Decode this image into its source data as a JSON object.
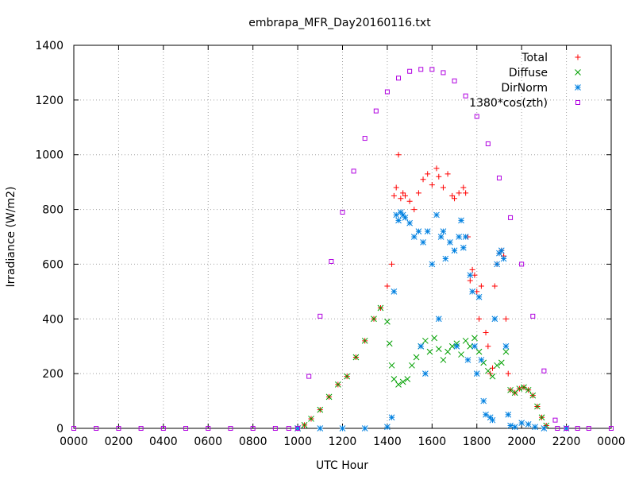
{
  "chart_data": {
    "type": "scatter",
    "title": "embrapa_MFR_Day20160116.txt",
    "xlabel": "UTC Hour",
    "ylabel": "Irradiance (W/m2)",
    "xlim": [
      0,
      24
    ],
    "ylim": [
      0,
      1400
    ],
    "xticks": [
      "0000",
      "0200",
      "0400",
      "0600",
      "0800",
      "1000",
      "1200",
      "1400",
      "1600",
      "1800",
      "2000",
      "2200",
      "0000"
    ],
    "yticks": [
      "0",
      "200",
      "400",
      "600",
      "800",
      "1000",
      "1200",
      "1400"
    ],
    "grid": true,
    "legend_position": "top-right",
    "series": [
      {
        "name": "Total",
        "marker": "plus",
        "color": "#ff0000",
        "points": [
          [
            10.0,
            0
          ],
          [
            10.3,
            12
          ],
          [
            10.6,
            35
          ],
          [
            11.0,
            68
          ],
          [
            11.4,
            115
          ],
          [
            11.8,
            160
          ],
          [
            12.2,
            190
          ],
          [
            12.6,
            260
          ],
          [
            13.0,
            320
          ],
          [
            13.4,
            400
          ],
          [
            13.7,
            440
          ],
          [
            14.0,
            520
          ],
          [
            14.2,
            600
          ],
          [
            14.3,
            850
          ],
          [
            14.4,
            880
          ],
          [
            14.5,
            1000
          ],
          [
            14.6,
            840
          ],
          [
            14.7,
            860
          ],
          [
            14.8,
            850
          ],
          [
            15.0,
            830
          ],
          [
            15.2,
            800
          ],
          [
            15.4,
            860
          ],
          [
            15.6,
            910
          ],
          [
            15.8,
            930
          ],
          [
            16.0,
            890
          ],
          [
            16.2,
            950
          ],
          [
            16.3,
            920
          ],
          [
            16.5,
            880
          ],
          [
            16.7,
            930
          ],
          [
            16.9,
            850
          ],
          [
            17.0,
            840
          ],
          [
            17.2,
            860
          ],
          [
            17.4,
            880
          ],
          [
            17.5,
            860
          ],
          [
            17.6,
            700
          ],
          [
            17.7,
            540
          ],
          [
            17.8,
            580
          ],
          [
            17.9,
            560
          ],
          [
            18.0,
            500
          ],
          [
            18.1,
            400
          ],
          [
            18.2,
            520
          ],
          [
            18.4,
            350
          ],
          [
            18.5,
            300
          ],
          [
            18.6,
            200
          ],
          [
            18.7,
            220
          ],
          [
            18.8,
            520
          ],
          [
            18.9,
            600
          ],
          [
            19.0,
            640
          ],
          [
            19.1,
            650
          ],
          [
            19.2,
            630
          ],
          [
            19.3,
            400
          ],
          [
            19.4,
            200
          ],
          [
            19.5,
            140
          ],
          [
            19.7,
            130
          ],
          [
            19.9,
            145
          ],
          [
            20.1,
            150
          ],
          [
            20.3,
            140
          ],
          [
            20.5,
            120
          ],
          [
            20.7,
            80
          ],
          [
            20.9,
            40
          ],
          [
            21.1,
            10
          ]
        ]
      },
      {
        "name": "Diffuse",
        "marker": "cross",
        "color": "#00a000",
        "points": [
          [
            10.0,
            0
          ],
          [
            10.3,
            12
          ],
          [
            10.6,
            35
          ],
          [
            11.0,
            68
          ],
          [
            11.4,
            115
          ],
          [
            11.8,
            160
          ],
          [
            12.2,
            190
          ],
          [
            12.6,
            260
          ],
          [
            13.0,
            320
          ],
          [
            13.4,
            400
          ],
          [
            13.7,
            440
          ],
          [
            14.0,
            390
          ],
          [
            14.1,
            310
          ],
          [
            14.2,
            230
          ],
          [
            14.3,
            180
          ],
          [
            14.5,
            160
          ],
          [
            14.7,
            170
          ],
          [
            14.9,
            180
          ],
          [
            15.1,
            230
          ],
          [
            15.3,
            260
          ],
          [
            15.5,
            300
          ],
          [
            15.7,
            320
          ],
          [
            15.9,
            280
          ],
          [
            16.1,
            330
          ],
          [
            16.3,
            290
          ],
          [
            16.5,
            250
          ],
          [
            16.7,
            280
          ],
          [
            16.9,
            300
          ],
          [
            17.1,
            310
          ],
          [
            17.3,
            270
          ],
          [
            17.5,
            320
          ],
          [
            17.7,
            300
          ],
          [
            17.9,
            330
          ],
          [
            18.1,
            280
          ],
          [
            18.3,
            240
          ],
          [
            18.5,
            210
          ],
          [
            18.7,
            190
          ],
          [
            18.9,
            230
          ],
          [
            19.1,
            240
          ],
          [
            19.3,
            280
          ],
          [
            19.5,
            140
          ],
          [
            19.7,
            130
          ],
          [
            19.9,
            145
          ],
          [
            20.1,
            150
          ],
          [
            20.3,
            140
          ],
          [
            20.5,
            120
          ],
          [
            20.7,
            80
          ],
          [
            20.9,
            40
          ],
          [
            21.1,
            10
          ]
        ]
      },
      {
        "name": "DirNorm",
        "marker": "star",
        "color": "#0080e0",
        "points": [
          [
            10.0,
            0
          ],
          [
            11.0,
            0
          ],
          [
            12.0,
            0
          ],
          [
            13.0,
            0
          ],
          [
            14.0,
            5
          ],
          [
            14.2,
            40
          ],
          [
            14.3,
            500
          ],
          [
            14.4,
            780
          ],
          [
            14.5,
            760
          ],
          [
            14.6,
            790
          ],
          [
            14.7,
            780
          ],
          [
            14.8,
            770
          ],
          [
            15.0,
            750
          ],
          [
            15.2,
            700
          ],
          [
            15.4,
            720
          ],
          [
            15.5,
            300
          ],
          [
            15.6,
            680
          ],
          [
            15.7,
            200
          ],
          [
            15.8,
            720
          ],
          [
            16.0,
            600
          ],
          [
            16.2,
            780
          ],
          [
            16.3,
            400
          ],
          [
            16.4,
            700
          ],
          [
            16.5,
            720
          ],
          [
            16.6,
            620
          ],
          [
            16.8,
            680
          ],
          [
            17.0,
            650
          ],
          [
            17.1,
            300
          ],
          [
            17.2,
            700
          ],
          [
            17.3,
            760
          ],
          [
            17.4,
            660
          ],
          [
            17.5,
            700
          ],
          [
            17.6,
            250
          ],
          [
            17.7,
            560
          ],
          [
            17.8,
            500
          ],
          [
            17.9,
            300
          ],
          [
            18.0,
            200
          ],
          [
            18.1,
            480
          ],
          [
            18.2,
            250
          ],
          [
            18.3,
            100
          ],
          [
            18.4,
            50
          ],
          [
            18.6,
            40
          ],
          [
            18.7,
            30
          ],
          [
            18.8,
            400
          ],
          [
            18.9,
            600
          ],
          [
            19.0,
            640
          ],
          [
            19.1,
            650
          ],
          [
            19.2,
            620
          ],
          [
            19.3,
            300
          ],
          [
            19.4,
            50
          ],
          [
            19.5,
            10
          ],
          [
            19.7,
            5
          ],
          [
            20.0,
            20
          ],
          [
            20.3,
            15
          ],
          [
            20.6,
            5
          ],
          [
            21.0,
            0
          ],
          [
            22.0,
            0
          ]
        ]
      },
      {
        "name": "1380*cos(zth)",
        "marker": "square",
        "color": "#b000e0",
        "points": [
          [
            0,
            0
          ],
          [
            1,
            0
          ],
          [
            2,
            0
          ],
          [
            3,
            0
          ],
          [
            4,
            0
          ],
          [
            5,
            0
          ],
          [
            6,
            0
          ],
          [
            7,
            0
          ],
          [
            8,
            0
          ],
          [
            9,
            0
          ],
          [
            9.6,
            0
          ],
          [
            10.0,
            0
          ],
          [
            10.5,
            190
          ],
          [
            11.0,
            410
          ],
          [
            11.5,
            610
          ],
          [
            12.0,
            790
          ],
          [
            12.5,
            940
          ],
          [
            13.0,
            1060
          ],
          [
            13.5,
            1160
          ],
          [
            14.0,
            1230
          ],
          [
            14.5,
            1280
          ],
          [
            15.0,
            1305
          ],
          [
            15.5,
            1312
          ],
          [
            16.0,
            1312
          ],
          [
            16.5,
            1300
          ],
          [
            17.0,
            1270
          ],
          [
            17.5,
            1215
          ],
          [
            18.0,
            1140
          ],
          [
            18.5,
            1040
          ],
          [
            19.0,
            915
          ],
          [
            19.5,
            770
          ],
          [
            20.0,
            600
          ],
          [
            20.5,
            410
          ],
          [
            21.0,
            210
          ],
          [
            21.5,
            30
          ],
          [
            21.6,
            0
          ],
          [
            22.0,
            0
          ],
          [
            22.5,
            0
          ],
          [
            23.0,
            0
          ],
          [
            24.0,
            0
          ]
        ]
      }
    ]
  }
}
